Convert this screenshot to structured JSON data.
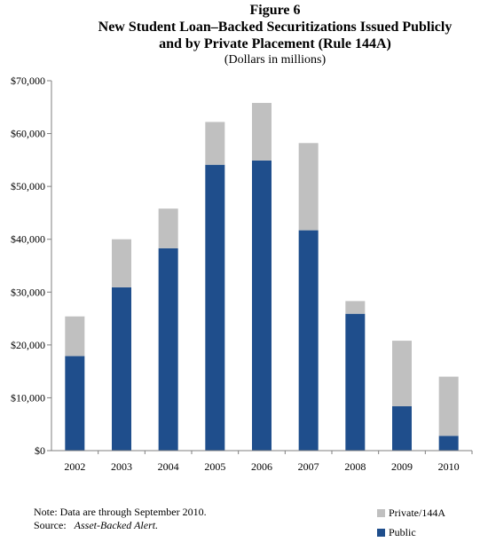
{
  "chart_data": {
    "type": "bar",
    "stacked": true,
    "figure_label": "Figure 6",
    "title_line1": "New Student Loan–Backed Securitizations Issued Publicly",
    "title_line2": "and by Private Placement (Rule 144A)",
    "subtitle": "(Dollars in millions)",
    "categories": [
      "2002",
      "2003",
      "2004",
      "2005",
      "2006",
      "2007",
      "2008",
      "2009",
      "2010"
    ],
    "series": [
      {
        "name": "Public",
        "color": "#1f4e8c",
        "values": [
          17900,
          30900,
          38300,
          54100,
          54900,
          41700,
          25900,
          8400,
          2800
        ]
      },
      {
        "name": "Private/144A",
        "color": "#c0c0c0",
        "values": [
          7500,
          9100,
          7500,
          8100,
          10900,
          16500,
          2400,
          12400,
          11200
        ]
      }
    ],
    "yticks": [
      "$0",
      "$10,000",
      "$20,000",
      "$30,000",
      "$40,000",
      "$50,000",
      "$60,000",
      "$70,000"
    ],
    "ylim": [
      0,
      70000
    ],
    "grid": false,
    "legend_position": "bottom-right"
  },
  "note": "Note:  Data are through September 2010.",
  "source_label": "Source:",
  "source_name": "Asset-Backed Alert."
}
